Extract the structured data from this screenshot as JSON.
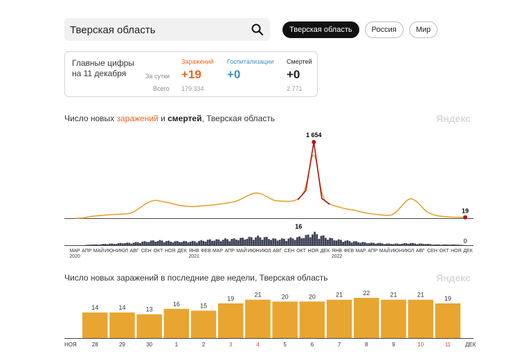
{
  "search": {
    "value": "Тверская область"
  },
  "tabs": [
    "Тверская область",
    "Россия",
    "Мир"
  ],
  "summary": {
    "title_line1": "Главные цифры",
    "title_line2": "на 11 декабря",
    "row_daily": "За сутки",
    "row_total": "Всего",
    "infections": {
      "label": "Заражений",
      "daily": "+19",
      "total": "179 334",
      "color": "#e8651f"
    },
    "hospitalizations": {
      "label": "Госпитализации",
      "daily": "+0",
      "total": "",
      "color": "#3f8fbf"
    },
    "deaths": {
      "label": "Смертей",
      "daily": "+0",
      "total": "2 771",
      "color": "#222222"
    }
  },
  "chart1": {
    "title_pre": "Число новых ",
    "title_hl": "заражений",
    "title_mid": " и ",
    "title_bold": "смертей",
    "title_post": ", Тверская область",
    "brand": "Яндекс",
    "peak_cases_label": "1 654",
    "last_cases_label": "19",
    "peak_deaths_label": "16",
    "last_deaths_label": "0",
    "month_labels": [
      "МАР",
      "АПР",
      "МАЙ",
      "ИЮН",
      "ИЮЛ",
      "АВГ",
      "СЕН",
      "ОКТ",
      "НОЯ",
      "ДЕК",
      "ЯНВ",
      "ФЕВ",
      "МАР",
      "АПР",
      "МАЙ",
      "ИЮН",
      "ИЮЛ",
      "АВГ",
      "СЕН",
      "ОКТ",
      "НОЯ",
      "ДЕК",
      "ЯНВ",
      "ФЕВ",
      "МАР",
      "АПР",
      "МАЙ",
      "ИЮН",
      "ИЮЛ",
      "АВГ",
      "СЕН",
      "ОКТ",
      "НОЯ",
      "ДЕК"
    ],
    "year_labels": [
      "2020",
      "2021",
      "2022"
    ],
    "case_color": "#e8a030",
    "peak_color": "#b01515",
    "death_color": "#3b3f55"
  },
  "chart_data": [
    {
      "type": "area",
      "title": "Число новых заражений и смертей, Тверская область",
      "x_start": "2020-03",
      "x_end": "2022-12-11",
      "series": [
        {
          "name": "заражений",
          "values": [
            0,
            0,
            40,
            55,
            70,
            80,
            90,
            100,
            200,
            330,
            400,
            360,
            330,
            280,
            260,
            250,
            270,
            280,
            300,
            330,
            350,
            420,
            520,
            560,
            480,
            380,
            370,
            360,
            400,
            600,
            1654,
            430,
            300,
            250,
            200,
            180,
            130,
            100,
            80,
            60,
            70,
            260,
            450,
            360,
            150,
            70,
            40,
            25,
            20,
            19
          ]
        },
        {
          "name": "смертей",
          "values": [
            0,
            0,
            1,
            1,
            2,
            2,
            3,
            3,
            4,
            5,
            6,
            6,
            5,
            5,
            5,
            5,
            6,
            7,
            7,
            8,
            8,
            9,
            10,
            11,
            10,
            8,
            8,
            9,
            10,
            12,
            16,
            12,
            9,
            7,
            6,
            5,
            4,
            3,
            3,
            2,
            2,
            2,
            3,
            2,
            2,
            1,
            1,
            1,
            1,
            0
          ]
        }
      ],
      "labels": {
        "max_cases": 1654,
        "last_cases": 19,
        "max_deaths": 16,
        "last_deaths": 0
      }
    },
    {
      "type": "bar",
      "title": "Число новых заражений в последние две недели, Тверская область",
      "categories": [
        "28",
        "29",
        "30",
        "1",
        "2",
        "3",
        "4",
        "5",
        "6",
        "7",
        "8",
        "9",
        "10",
        "11"
      ],
      "values": [
        14,
        14,
        13,
        16,
        15,
        19,
        21,
        20,
        20,
        21,
        22,
        21,
        21,
        19
      ],
      "month_start": "НОЯ",
      "month_end": "ДЕК",
      "weekend_color": "#d9462a",
      "weekend_categories": [
        "3",
        "4",
        "10",
        "11"
      ],
      "bar_color": "#e8a530"
    }
  ],
  "chart2": {
    "title": "Число новых заражений в последние две недели, Тверская область",
    "brand": "Яндекс"
  }
}
